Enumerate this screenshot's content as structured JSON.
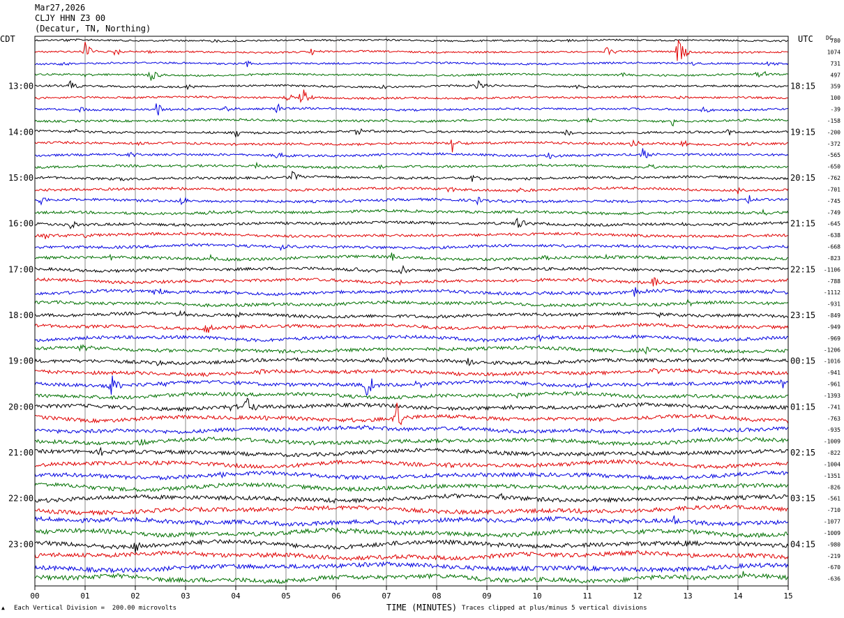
{
  "header": {
    "date": "Mar27,2026",
    "station": "CLJY HHN Z3 00",
    "location": "(Decatur, TN, Northing)"
  },
  "left_zone": "CDT",
  "right_zone": "UTC",
  "dc_label": "DC",
  "footer": {
    "scale_note": "Each Vertical Division =  200.00 microvolts",
    "clip_note": "Traces clipped at plus/minus 5 vertical divisions",
    "corner_mark": "▲"
  },
  "chart_data": {
    "type": "line",
    "title": "",
    "xlabel": "TIME (MINUTES)",
    "ylabel": "",
    "x_ticks": [
      "00",
      "01",
      "02",
      "03",
      "04",
      "05",
      "06",
      "07",
      "08",
      "09",
      "10",
      "11",
      "12",
      "13",
      "14",
      "15"
    ],
    "xlim": [
      0,
      15
    ],
    "row_minutes": 15,
    "row_count": 48,
    "left_time_labels": [
      {
        "row": 4,
        "label": "13:00"
      },
      {
        "row": 8,
        "label": "14:00"
      },
      {
        "row": 12,
        "label": "15:00"
      },
      {
        "row": 16,
        "label": "16:00"
      },
      {
        "row": 20,
        "label": "17:00"
      },
      {
        "row": 24,
        "label": "18:00"
      },
      {
        "row": 28,
        "label": "19:00"
      },
      {
        "row": 32,
        "label": "20:00"
      },
      {
        "row": 36,
        "label": "21:00"
      },
      {
        "row": 40,
        "label": "22:00"
      },
      {
        "row": 44,
        "label": "23:00"
      }
    ],
    "right_time_labels": [
      {
        "row": 4,
        "label": "18:15"
      },
      {
        "row": 8,
        "label": "19:15"
      },
      {
        "row": 12,
        "label": "20:15"
      },
      {
        "row": 16,
        "label": "21:15"
      },
      {
        "row": 20,
        "label": "22:15"
      },
      {
        "row": 24,
        "label": "23:15"
      },
      {
        "row": 28,
        "label": "00:15"
      },
      {
        "row": 32,
        "label": "01:15"
      },
      {
        "row": 36,
        "label": "02:15"
      },
      {
        "row": 40,
        "label": "03:15"
      },
      {
        "row": 44,
        "label": "04:15"
      }
    ],
    "dc_offsets": [
      "780",
      "1074",
      "731",
      "497",
      "359",
      "100",
      "-39",
      "-158",
      "-200",
      "-372",
      "-565",
      "-650",
      "-762",
      "-701",
      "-745",
      "-749",
      "-645",
      "-638",
      "-668",
      "-823",
      "-1106",
      "-788",
      "-1112",
      "-931",
      "-849",
      "-949",
      "-969",
      "-1206",
      "-1016",
      "-941",
      "-961",
      "-1393",
      "-741",
      "-763",
      "-935",
      "-1009",
      "-822",
      "-1004",
      "-1351",
      "-826",
      "-561",
      "-710",
      "-1077",
      "-1009",
      "-980",
      "-219",
      "-670",
      "-636"
    ],
    "colors": [
      "#000000",
      "#e00000",
      "#0000e0",
      "#007000"
    ],
    "events": [
      [
        [
          0.6,
          3
        ],
        [
          3.5,
          3
        ],
        [
          10.6,
          2
        ]
      ],
      [
        [
          1.0,
          14
        ],
        [
          1.6,
          8
        ],
        [
          5.5,
          6
        ],
        [
          11.4,
          14
        ],
        [
          12.8,
          24
        ],
        [
          2.3,
          4
        ]
      ],
      [
        [
          0.5,
          5
        ],
        [
          4.2,
          5
        ],
        [
          9.3,
          5
        ],
        [
          13.1,
          4
        ],
        [
          14.6,
          6
        ]
      ],
      [
        [
          1.0,
          5
        ],
        [
          2.3,
          12
        ],
        [
          11.7,
          4
        ],
        [
          14.4,
          11
        ]
      ],
      [
        [
          0.7,
          12
        ],
        [
          3.0,
          5
        ],
        [
          6.9,
          5
        ],
        [
          8.8,
          8
        ],
        [
          10.8,
          4
        ]
      ],
      [
        [
          5.3,
          20
        ],
        [
          5.0,
          6
        ],
        [
          12.8,
          4
        ]
      ],
      [
        [
          0.9,
          4
        ],
        [
          2.4,
          14
        ],
        [
          3.8,
          6
        ],
        [
          4.8,
          8
        ],
        [
          13.3,
          4
        ]
      ],
      [
        [
          6.9,
          5
        ],
        [
          11.0,
          5
        ],
        [
          12.7,
          8
        ]
      ],
      [
        [
          0.8,
          5
        ],
        [
          4.0,
          8
        ],
        [
          6.4,
          8
        ],
        [
          10.6,
          10
        ],
        [
          13.8,
          7
        ]
      ],
      [
        [
          2.0,
          4
        ],
        [
          8.3,
          16
        ],
        [
          11.9,
          6
        ],
        [
          12.9,
          8
        ],
        [
          14.1,
          5
        ]
      ],
      [
        [
          1.9,
          4
        ],
        [
          4.8,
          6
        ],
        [
          10.2,
          8
        ],
        [
          12.1,
          10
        ]
      ],
      [
        [
          4.4,
          5
        ],
        [
          6.9,
          6
        ],
        [
          12.2,
          8
        ]
      ],
      [
        [
          1.7,
          5
        ],
        [
          5.1,
          10
        ],
        [
          8.7,
          10
        ]
      ],
      [
        [
          2.7,
          4
        ],
        [
          8.2,
          6
        ],
        [
          9.6,
          5
        ],
        [
          14.0,
          4
        ]
      ],
      [
        [
          0.1,
          6
        ],
        [
          2.9,
          8
        ],
        [
          8.8,
          5
        ],
        [
          14.2,
          8
        ]
      ],
      [
        [
          3.4,
          6
        ],
        [
          14.5,
          4
        ]
      ],
      [
        [
          0.7,
          8
        ],
        [
          9.6,
          12
        ],
        [
          12.9,
          4
        ]
      ],
      [
        [
          0.2,
          6
        ],
        [
          1.0,
          3
        ]
      ],
      [
        [
          4.9,
          6
        ],
        [
          6.5,
          3
        ]
      ],
      [
        [
          1.5,
          4
        ],
        [
          3.5,
          6
        ],
        [
          7.1,
          6
        ],
        [
          10.1,
          8
        ],
        [
          11.3,
          6
        ]
      ],
      [
        [
          6.4,
          4
        ],
        [
          7.3,
          10
        ]
      ],
      [
        [
          7.2,
          8
        ],
        [
          12.3,
          10
        ],
        [
          14.6,
          4
        ]
      ],
      [
        [
          2.4,
          10
        ],
        [
          11.9,
          10
        ],
        [
          12.0,
          6
        ],
        [
          14.7,
          5
        ]
      ],
      [
        [
          13.0,
          5
        ]
      ],
      [
        [
          2.9,
          5
        ],
        [
          4.0,
          4
        ],
        [
          12.4,
          4
        ]
      ],
      [
        [
          3.4,
          8
        ]
      ],
      [
        [
          10.0,
          5
        ]
      ],
      [
        [
          0.9,
          6
        ],
        [
          12.1,
          6
        ]
      ],
      [
        [
          2.4,
          5
        ],
        [
          6.9,
          8
        ],
        [
          8.6,
          10
        ]
      ],
      [
        [
          4.5,
          6
        ],
        [
          12.3,
          6
        ]
      ],
      [
        [
          1.5,
          26
        ],
        [
          2.6,
          5
        ],
        [
          6.6,
          22
        ],
        [
          7.6,
          8
        ],
        [
          11.0,
          8
        ],
        [
          14.9,
          10
        ]
      ],
      [
        [
          9.6,
          4
        ]
      ],
      [
        [
          4.2,
          18
        ],
        [
          3.9,
          6
        ],
        [
          9.5,
          4
        ]
      ],
      [
        [
          7.2,
          26
        ],
        [
          4.6,
          5
        ],
        [
          6.3,
          5
        ],
        [
          15.0,
          5
        ]
      ],
      [
        [
          6.5,
          4
        ]
      ],
      [
        [
          2.1,
          5
        ]
      ],
      [
        [
          1.3,
          5
        ]
      ],
      [
        [
          8.1,
          6
        ],
        [
          12.8,
          5
        ]
      ],
      [
        [
          1.8,
          5
        ],
        [
          3.7,
          4
        ]
      ],
      [
        [
          6.2,
          5
        ]
      ],
      [
        [
          5.9,
          5
        ],
        [
          9.3,
          4
        ]
      ],
      [
        [
          10.9,
          4
        ]
      ],
      [
        [
          12.7,
          8
        ]
      ],
      [
        [
          6.1,
          5
        ]
      ],
      [
        [
          2.0,
          8
        ],
        [
          12.9,
          4
        ]
      ],
      [
        [
          4.5,
          4
        ]
      ],
      [
        [
          3.9,
          5
        ]
      ],
      [
        [
          14.1,
          5
        ]
      ]
    ]
  }
}
